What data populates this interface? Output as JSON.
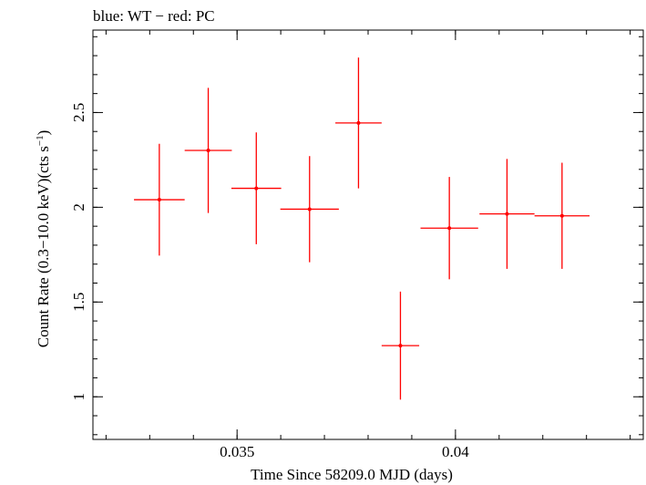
{
  "chart_data": {
    "type": "scatter",
    "title": "blue: WT − red: PC",
    "xlabel": "Time Since 58209.0 MJD (days)",
    "ylabel_main": "Count Rate (0.3−10.0 keV)(cts s",
    "ylabel_sup": "−1",
    "ylabel_close": ")",
    "xlim": [
      0.0317,
      0.0443
    ],
    "ylim": [
      0.775,
      2.935
    ],
    "x_ticks": [
      {
        "value": 0.035,
        "label": "0.035"
      },
      {
        "value": 0.04,
        "label": "0.04"
      }
    ],
    "x_minor_step": 0.001,
    "y_ticks": [
      {
        "value": 1,
        "label": "1"
      },
      {
        "value": 1.5,
        "label": "1.5"
      },
      {
        "value": 2,
        "label": "2"
      },
      {
        "value": 2.5,
        "label": "2.5"
      }
    ],
    "y_minor_step": 0.1,
    "series": [
      {
        "name": "PC",
        "color": "#ff0000",
        "points": [
          {
            "x": 0.03322,
            "y": 2.04,
            "xerr": 0.00058,
            "yerr": 0.295
          },
          {
            "x": 0.03434,
            "y": 2.3,
            "xerr": 0.00054,
            "yerr": 0.33
          },
          {
            "x": 0.03544,
            "y": 2.1,
            "xerr": 0.00057,
            "yerr": 0.295
          },
          {
            "x": 0.03666,
            "y": 1.99,
            "xerr": 0.00067,
            "yerr": 0.28
          },
          {
            "x": 0.03778,
            "y": 2.445,
            "xerr": 0.00053,
            "yerr": 0.345
          },
          {
            "x": 0.03874,
            "y": 1.27,
            "xerr": 0.00043,
            "yerr": 0.285
          },
          {
            "x": 0.03986,
            "y": 1.89,
            "xerr": 0.00066,
            "yerr": 0.27
          },
          {
            "x": 0.04118,
            "y": 1.965,
            "xerr": 0.00063,
            "yerr": 0.29
          },
          {
            "x": 0.04244,
            "y": 1.955,
            "xerr": 0.00063,
            "yerr": 0.28
          }
        ]
      }
    ]
  }
}
